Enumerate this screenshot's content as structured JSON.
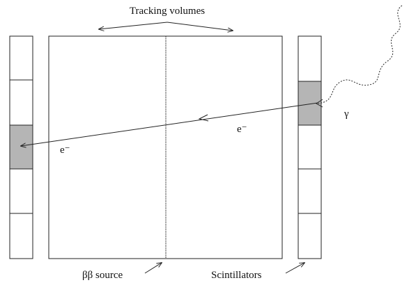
{
  "labels": {
    "tracking_volumes": "Tracking volumes",
    "gamma": "γ",
    "electron_right": "e⁻",
    "electron_left": "e⁻",
    "source": "ββ source",
    "scintillators": "Scintillators"
  }
}
